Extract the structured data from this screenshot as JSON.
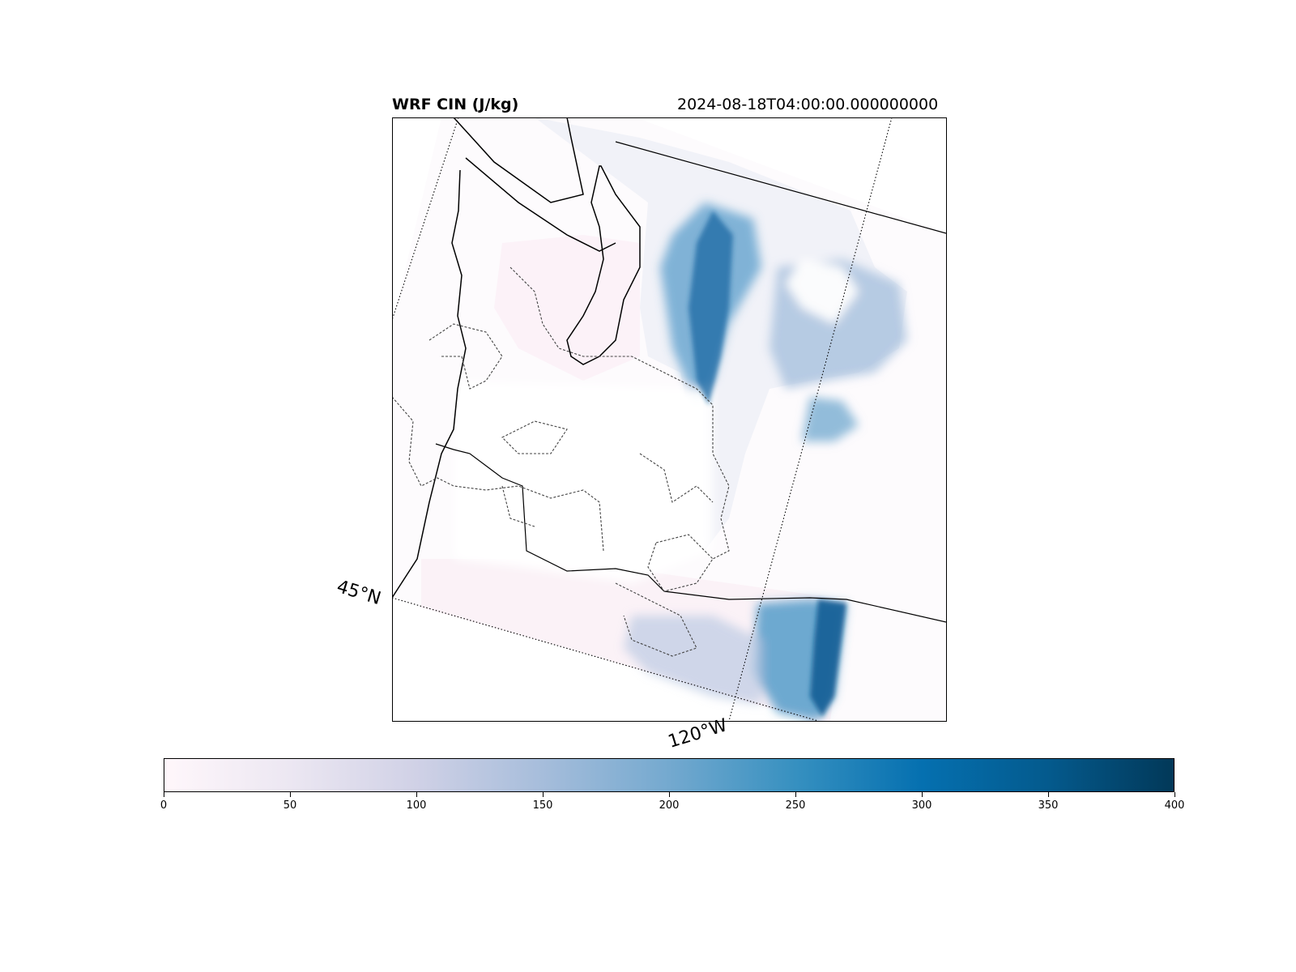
{
  "title_left": "WRF CIN (J/kg)",
  "title_right": "2024-08-18T04:00:00.000000000",
  "gridline_labels": {
    "lat": "45°N",
    "lon": "120°W"
  },
  "colormap": {
    "name": "PuBu",
    "stops": [
      "#fff7fb",
      "#ece7f2",
      "#d0d1e6",
      "#a6bddb",
      "#74a9cf",
      "#3690c0",
      "#0570b0",
      "#045a8d",
      "#023858"
    ]
  },
  "colorbar": {
    "min": 0,
    "max": 400,
    "ticks": [
      "0",
      "50",
      "100",
      "150",
      "200",
      "250",
      "300",
      "350",
      "400"
    ]
  },
  "overlays": [
    "coastline",
    "state-borders",
    "county-borders-dashed",
    "lat-lon-gridlines"
  ]
}
